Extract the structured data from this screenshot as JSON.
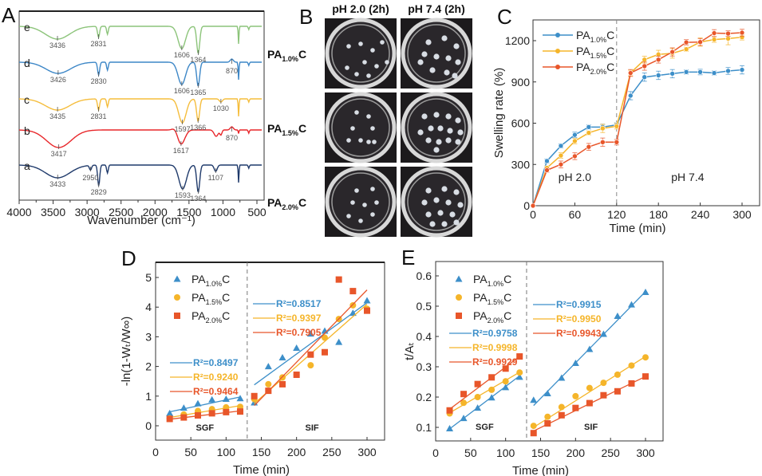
{
  "figure": {
    "panels": [
      "A",
      "B",
      "C",
      "D",
      "E"
    ]
  },
  "chart_data": [
    {
      "id": "A",
      "type": "line",
      "title": "",
      "xlabel": "Wavenumber (cm⁻¹)",
      "ylabel": "",
      "xlim": [
        4000,
        430
      ],
      "x_ticks": [
        4000,
        3500,
        3000,
        2500,
        2000,
        1500,
        1000,
        500
      ],
      "series": [
        {
          "name": "a",
          "color": "#1f3a6b",
          "peaks": [
            3433,
            2950,
            2829,
            1593,
            1364,
            1107
          ]
        },
        {
          "name": "b",
          "color": "#e8262a",
          "peaks": [
            3417,
            1617,
            870
          ]
        },
        {
          "name": "c",
          "color": "#f5bd3c",
          "peaks": [
            3435,
            2831,
            1597,
            1366,
            1030
          ]
        },
        {
          "name": "d",
          "color": "#3d87c7",
          "peaks": [
            3426,
            2830,
            1606,
            1365,
            870
          ]
        },
        {
          "name": "e",
          "color": "#8cc47a",
          "peaks": [
            3436,
            2831,
            1606,
            1364
          ]
        }
      ]
    },
    {
      "id": "B",
      "type": "table",
      "columns": [
        "pH 2.0 (2h)",
        "pH 7.4 (2h)"
      ],
      "rows": [
        {
          "label_main": "PA",
          "label_sub": "1.0%",
          "label_tail": "C"
        },
        {
          "label_main": "PA",
          "label_sub": "1.5%",
          "label_tail": "C"
        },
        {
          "label_main": "PA",
          "label_sub": "2.0%",
          "label_tail": "C"
        }
      ]
    },
    {
      "id": "C",
      "type": "line",
      "xlabel": "Time (min)",
      "ylabel": "Swelling rate (%)",
      "xlim": [
        0,
        320
      ],
      "ylim": [
        0,
        1350
      ],
      "x_ticks": [
        0,
        60,
        120,
        180,
        240,
        300
      ],
      "y_ticks": [
        0,
        300,
        600,
        900,
        1200
      ],
      "divider_x": 120,
      "annotations": [
        "pH 2.0",
        "pH 7.4"
      ],
      "legend": "top-left",
      "x": [
        0,
        20,
        40,
        60,
        80,
        100,
        120,
        140,
        160,
        180,
        200,
        220,
        240,
        260,
        280,
        300
      ],
      "series": [
        {
          "name_main": "PA",
          "name_sub": "1.0%",
          "name_tail": "C",
          "color": "#3d8fc9",
          "values": [
            0,
            325,
            435,
            515,
            572,
            572,
            588,
            800,
            935,
            948,
            960,
            972,
            972,
            965,
            980,
            988
          ],
          "errors": [
            0,
            15,
            15,
            20,
            15,
            20,
            15,
            30,
            30,
            30,
            30,
            15,
            20,
            15,
            25,
            30
          ]
        },
        {
          "name_main": "PA",
          "name_sub": "1.5%",
          "name_tail": "C",
          "color": "#f5b52a",
          "values": [
            0,
            275,
            365,
            470,
            530,
            562,
            578,
            965,
            1062,
            1100,
            1108,
            1138,
            1190,
            1208,
            1215,
            1225
          ],
          "errors": [
            0,
            15,
            20,
            20,
            15,
            30,
            20,
            20,
            25,
            30,
            35,
            15,
            30,
            20,
            45,
            20
          ]
        },
        {
          "name_main": "PA",
          "name_sub": "2.0%",
          "name_tail": "C",
          "color": "#e8562a",
          "values": [
            0,
            258,
            300,
            360,
            428,
            462,
            462,
            965,
            1015,
            1062,
            1118,
            1188,
            1190,
            1255,
            1252,
            1258
          ],
          "errors": [
            0,
            15,
            25,
            25,
            25,
            30,
            20,
            25,
            30,
            25,
            30,
            20,
            25,
            25,
            20,
            25
          ]
        }
      ]
    },
    {
      "id": "D",
      "type": "scatter",
      "xlabel": "Time (min)",
      "ylabel": "-ln(1-Wₜ/W∞)",
      "xlim": [
        0,
        308
      ],
      "ylim": [
        -0.5,
        5.5
      ],
      "x_ticks": [
        0,
        50,
        100,
        150,
        200,
        250,
        300
      ],
      "y_ticks": [
        0,
        1,
        2,
        3,
        4,
        5
      ],
      "divider_x": 130,
      "region_labels": [
        "SGF",
        "SIF"
      ],
      "legend": "top-left",
      "x_sgf": [
        20,
        40,
        60,
        80,
        100,
        120
      ],
      "x_sif": [
        140,
        160,
        180,
        200,
        220,
        240,
        260,
        280,
        300
      ],
      "series": [
        {
          "name_main": "PA",
          "name_sub": "1.0%",
          "name_tail": "C",
          "color": "#3d8fc9",
          "marker": "triangle",
          "sgf": [
            0.42,
            0.6,
            0.75,
            0.88,
            0.9,
            0.92
          ],
          "sif": [
            0.78,
            2.0,
            2.3,
            2.62,
            3.1,
            3.2,
            2.82,
            3.8,
            4.22
          ],
          "fit_sgf": {
            "r2": "R²=0.8497",
            "y0": 0.47,
            "y1": 0.97
          },
          "fit_sif": {
            "r2": "R²=0.8517",
            "y0": 1.38,
            "y1": 4.15
          }
        },
        {
          "name_main": "PA",
          "name_sub": "1.5%",
          "name_tail": "C",
          "color": "#f5b52a",
          "marker": "circle",
          "sgf": [
            0.25,
            0.38,
            0.5,
            0.56,
            0.62,
            0.64
          ],
          "sif": [
            0.9,
            1.4,
            1.63,
            1.72,
            2.04,
            2.97,
            3.6,
            4.06,
            3.94
          ],
          "fit_sgf": {
            "r2": "R²=0.9240",
            "y0": 0.28,
            "y1": 0.68
          },
          "fit_sif": {
            "r2": "R²=0.9397",
            "y0": 0.75,
            "y1": 4.1
          }
        },
        {
          "name_main": "PA",
          "name_sub": "2.0%",
          "name_tail": "C",
          "color": "#e8562a",
          "marker": "square",
          "sgf": [
            0.23,
            0.28,
            0.35,
            0.42,
            0.46,
            0.48
          ],
          "sif": [
            1.0,
            1.18,
            1.4,
            1.72,
            2.4,
            2.48,
            4.93,
            4.54,
            3.88
          ],
          "fit_sgf": {
            "r2": "R²=0.9464",
            "y0": 0.22,
            "y1": 0.5
          },
          "fit_sif": {
            "r2": "R²=0.7905",
            "y0": 0.68,
            "y1": 4.58
          }
        }
      ]
    },
    {
      "id": "E",
      "type": "scatter",
      "xlabel": "Time (min)",
      "ylabel": "t/Aₜ",
      "xlim": [
        0,
        325
      ],
      "ylim": [
        0.05,
        0.65
      ],
      "x_ticks": [
        0,
        50,
        100,
        150,
        200,
        250,
        300
      ],
      "y_ticks": [
        0.1,
        0.2,
        0.3,
        0.4,
        0.5,
        0.6
      ],
      "divider_x": 130,
      "region_labels": [
        "SGF",
        "SIF"
      ],
      "legend": "top-left",
      "x_sgf": [
        20,
        40,
        60,
        80,
        100,
        120
      ],
      "x_sif": [
        140,
        160,
        180,
        200,
        220,
        240,
        260,
        280,
        300
      ],
      "series": [
        {
          "name_main": "PA",
          "name_sub": "1.0%",
          "name_tail": "C",
          "color": "#3d8fc9",
          "marker": "triangle",
          "sgf": [
            0.096,
            0.13,
            0.164,
            0.198,
            0.232,
            0.266
          ],
          "sif": [
            0.19,
            0.212,
            0.263,
            0.312,
            0.358,
            0.408,
            0.467,
            0.505,
            0.546
          ],
          "fit_sgf": {
            "r2": "R²=0.9758",
            "y0": 0.095,
            "y1": 0.27
          },
          "fit_sif": {
            "r2": "R²=0.9915",
            "y0": 0.172,
            "y1": 0.548
          }
        },
        {
          "name_main": "PA",
          "name_sub": "1.5%",
          "name_tail": "C",
          "color": "#f5b52a",
          "marker": "circle",
          "sgf": [
            0.146,
            0.181,
            0.2,
            0.224,
            0.252,
            0.281
          ],
          "sif": [
            0.105,
            0.135,
            0.167,
            0.203,
            0.23,
            0.247,
            0.274,
            0.304,
            0.331
          ],
          "fit_sgf": {
            "r2": "R²=0.9998",
            "y0": 0.148,
            "y1": 0.282
          },
          "fit_sif": {
            "r2": "R²=0.9950",
            "y0": 0.1,
            "y1": 0.334
          }
        },
        {
          "name_main": "PA",
          "name_sub": "2.0%",
          "name_tail": "C",
          "color": "#e8562a",
          "marker": "square",
          "sgf": [
            0.156,
            0.21,
            0.243,
            0.265,
            0.294,
            0.334
          ],
          "sif": [
            0.081,
            0.113,
            0.14,
            0.164,
            0.18,
            0.206,
            0.219,
            0.245,
            0.268
          ],
          "fit_sgf": {
            "r2": "R²=0.9929",
            "y0": 0.16,
            "y1": 0.334
          },
          "fit_sif": {
            "r2": "R²=0.9943",
            "y0": 0.088,
            "y1": 0.268
          }
        }
      ]
    }
  ]
}
